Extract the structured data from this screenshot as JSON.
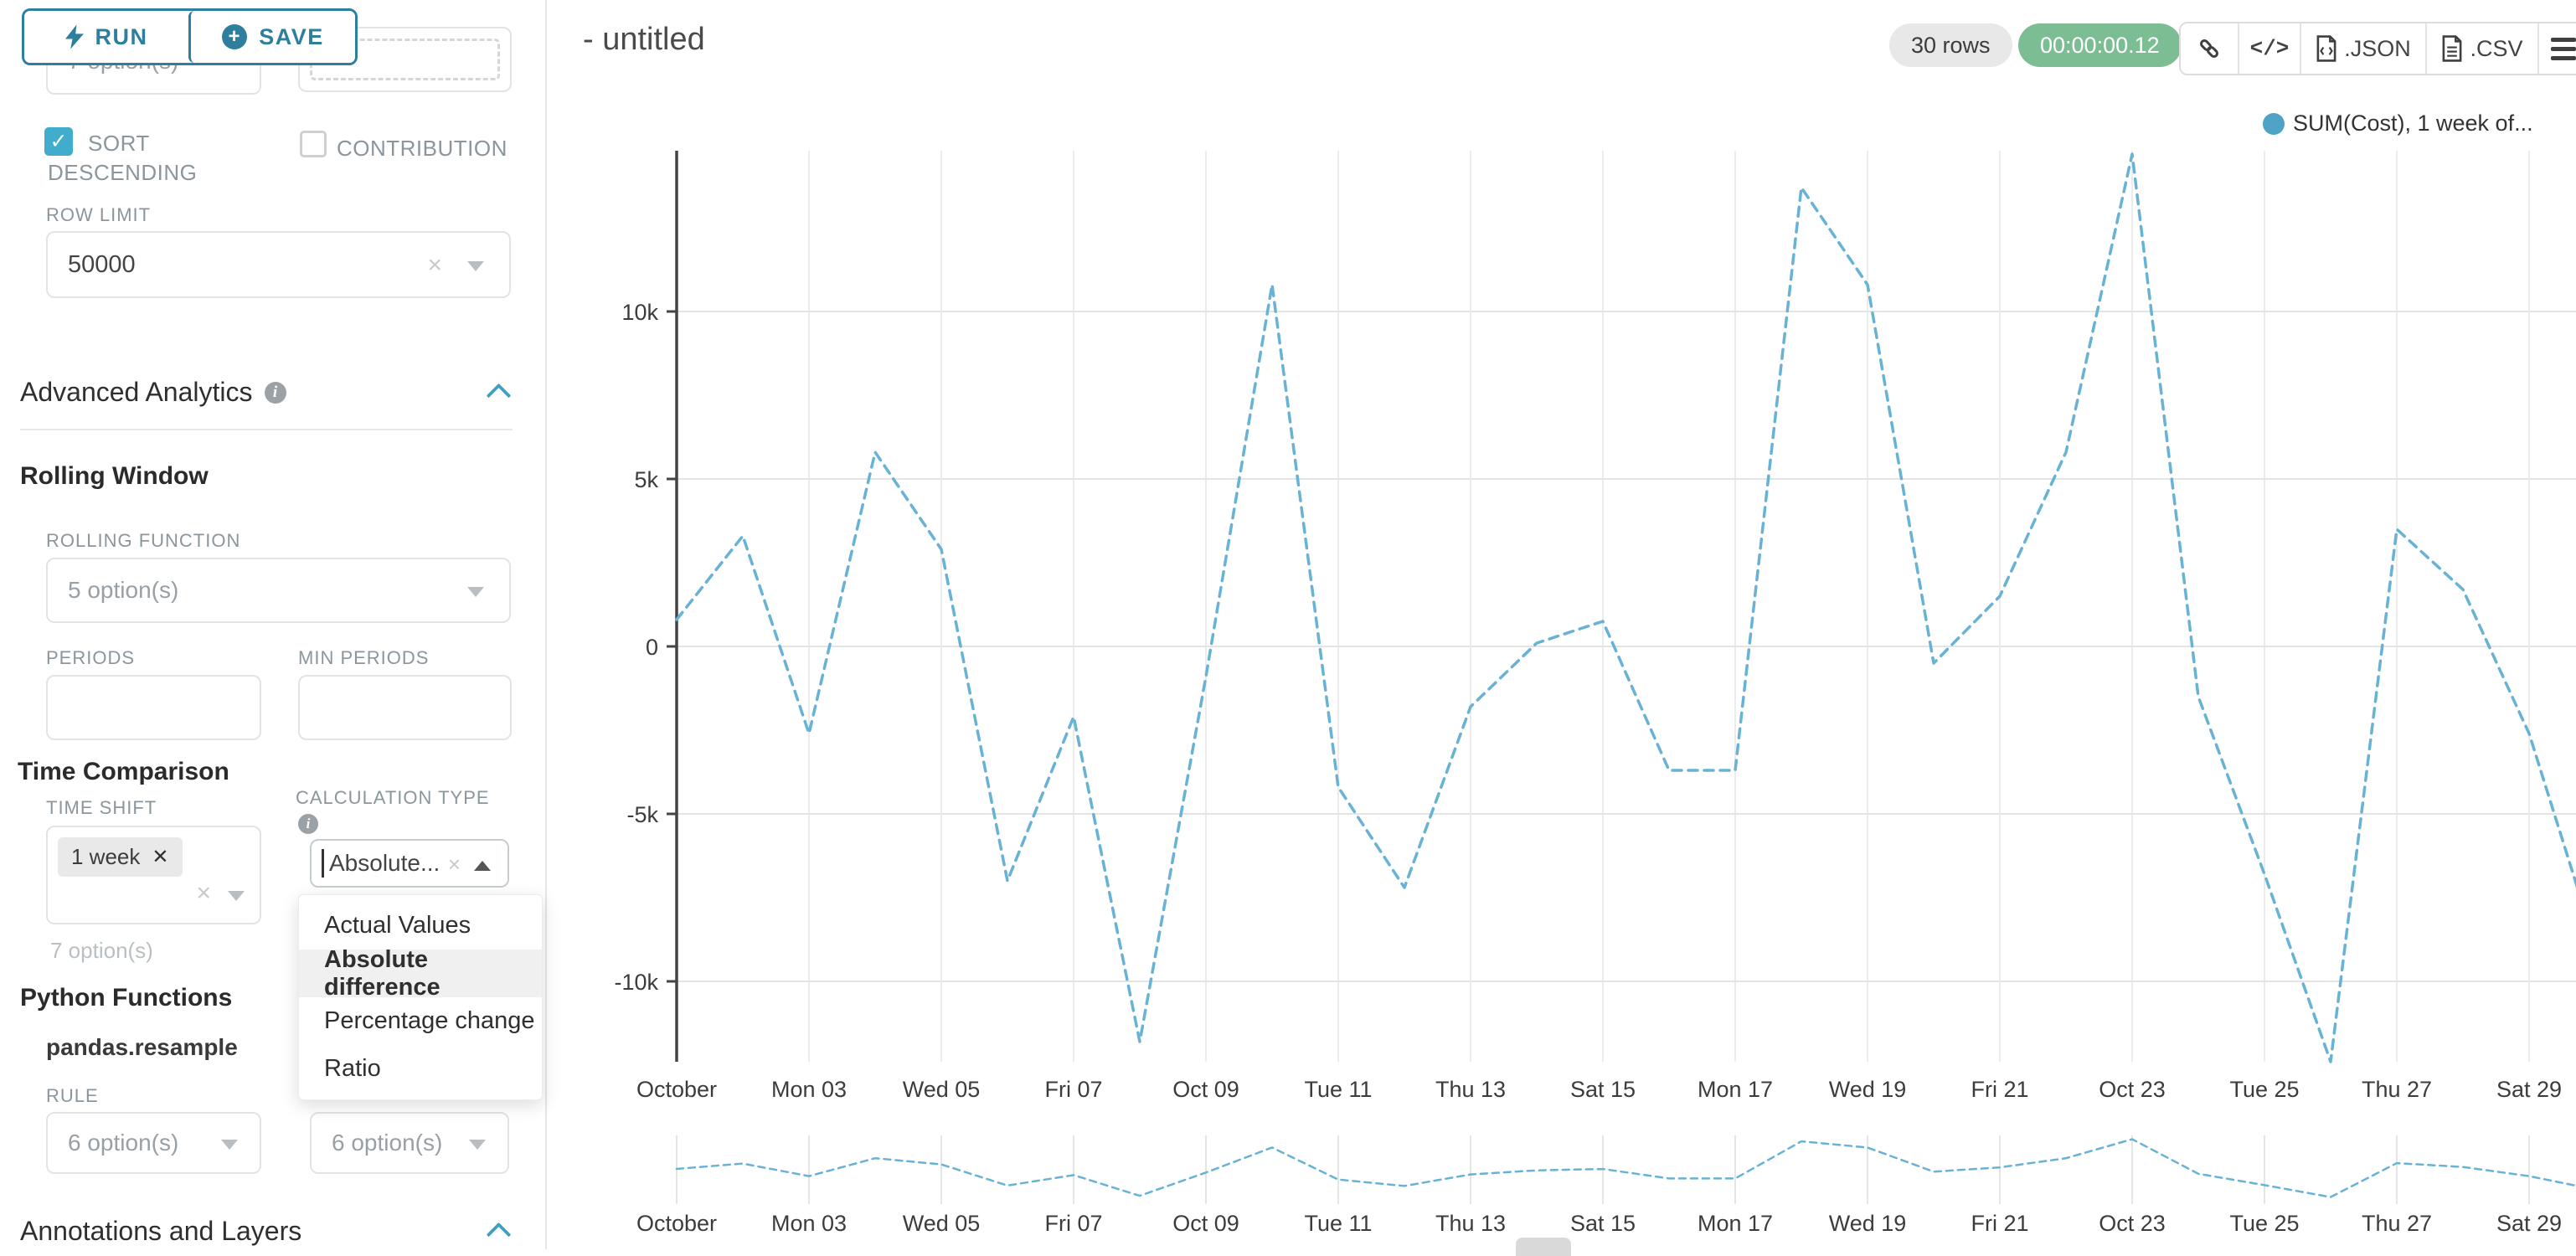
{
  "colors": {
    "accent_teal": "#2e7f9e",
    "chevron_blue": "#3aa2c6",
    "checkbox_checked": "#41accc",
    "timer_green": "#7cbd94",
    "series_dot": "#4ea3c6",
    "series_line": "#68b2d5"
  },
  "sidebar": {
    "run_button": "RUN",
    "save_button": "SAVE",
    "top_left_select_value": "7 option(s)",
    "sort_descending_label": "SORT DESCENDING",
    "sort_descending_checked": true,
    "contribution_label": "CONTRIBUTION",
    "contribution_checked": false,
    "row_limit_label": "ROW LIMIT",
    "row_limit_value": "50000",
    "advanced_analytics_title": "Advanced Analytics",
    "rolling_window_title": "Rolling Window",
    "rolling_function_label": "ROLLING FUNCTION",
    "rolling_function_placeholder": "5 option(s)",
    "periods_label": "PERIODS",
    "periods_value": "",
    "min_periods_label": "MIN PERIODS",
    "min_periods_value": "",
    "time_comparison_title": "Time Comparison",
    "time_shift_label": "TIME SHIFT",
    "time_shift_tag": "1 week",
    "time_shift_helper": "7 option(s)",
    "calculation_type_label": "CALCULATION TYPE",
    "calculation_type_value": "Absolute...",
    "calculation_dropdown": {
      "options": [
        "Actual Values",
        "Absolute difference",
        "Percentage change",
        "Ratio"
      ],
      "highlighted": "Absolute difference"
    },
    "python_functions_title": "Python Functions",
    "python_functions_subtitle": "pandas.resample",
    "rule_label": "RULE",
    "rule_placeholder": "6 option(s)",
    "second_rule_placeholder": "6 option(s)",
    "annotations_title": "Annotations and Layers"
  },
  "header": {
    "title": "- untitled",
    "rows_badge": "30 rows",
    "timer": "00:00:00.12",
    "json_button": ".JSON",
    "csv_button": ".CSV"
  },
  "legend": {
    "label": "SUM(Cost), 1 week of...",
    "color": "#4ea3c6"
  },
  "chart_data": {
    "type": "line",
    "line_style": "dashed",
    "title": "",
    "xlabel": "",
    "ylabel": "",
    "legend_position": "top-right",
    "grid": true,
    "y_tick_labels": [
      "10k",
      "5k",
      "0",
      "-5k",
      "-10k"
    ],
    "y_tick_values": [
      10000,
      5000,
      0,
      -5000,
      -10000
    ],
    "ylim": [
      -13600,
      15200
    ],
    "x_tick_labels": [
      "October",
      "Mon 03",
      "Wed 05",
      "Fri 07",
      "Oct 09",
      "Tue 11",
      "Thu 13",
      "Sat 15",
      "Mon 17",
      "Wed 19",
      "Fri 21",
      "Oct 23",
      "Tue 25",
      "Thu 27",
      "Sat 29"
    ],
    "points_per_tick": 2,
    "n_points": 30,
    "series": [
      {
        "name": "SUM(Cost), 1 week of...",
        "color": "#68b2d5",
        "values": [
          800,
          3300,
          -2600,
          5800,
          2900,
          -7000,
          -2100,
          -11800,
          -900,
          10800,
          -4200,
          -7200,
          -1800,
          100,
          750,
          -3700,
          -3700,
          13700,
          10800,
          -500,
          1500,
          5800,
          14700,
          -1500,
          -6800,
          -12400,
          3500,
          1700,
          -2600,
          -8900
        ]
      }
    ],
    "mini_preview": true
  }
}
